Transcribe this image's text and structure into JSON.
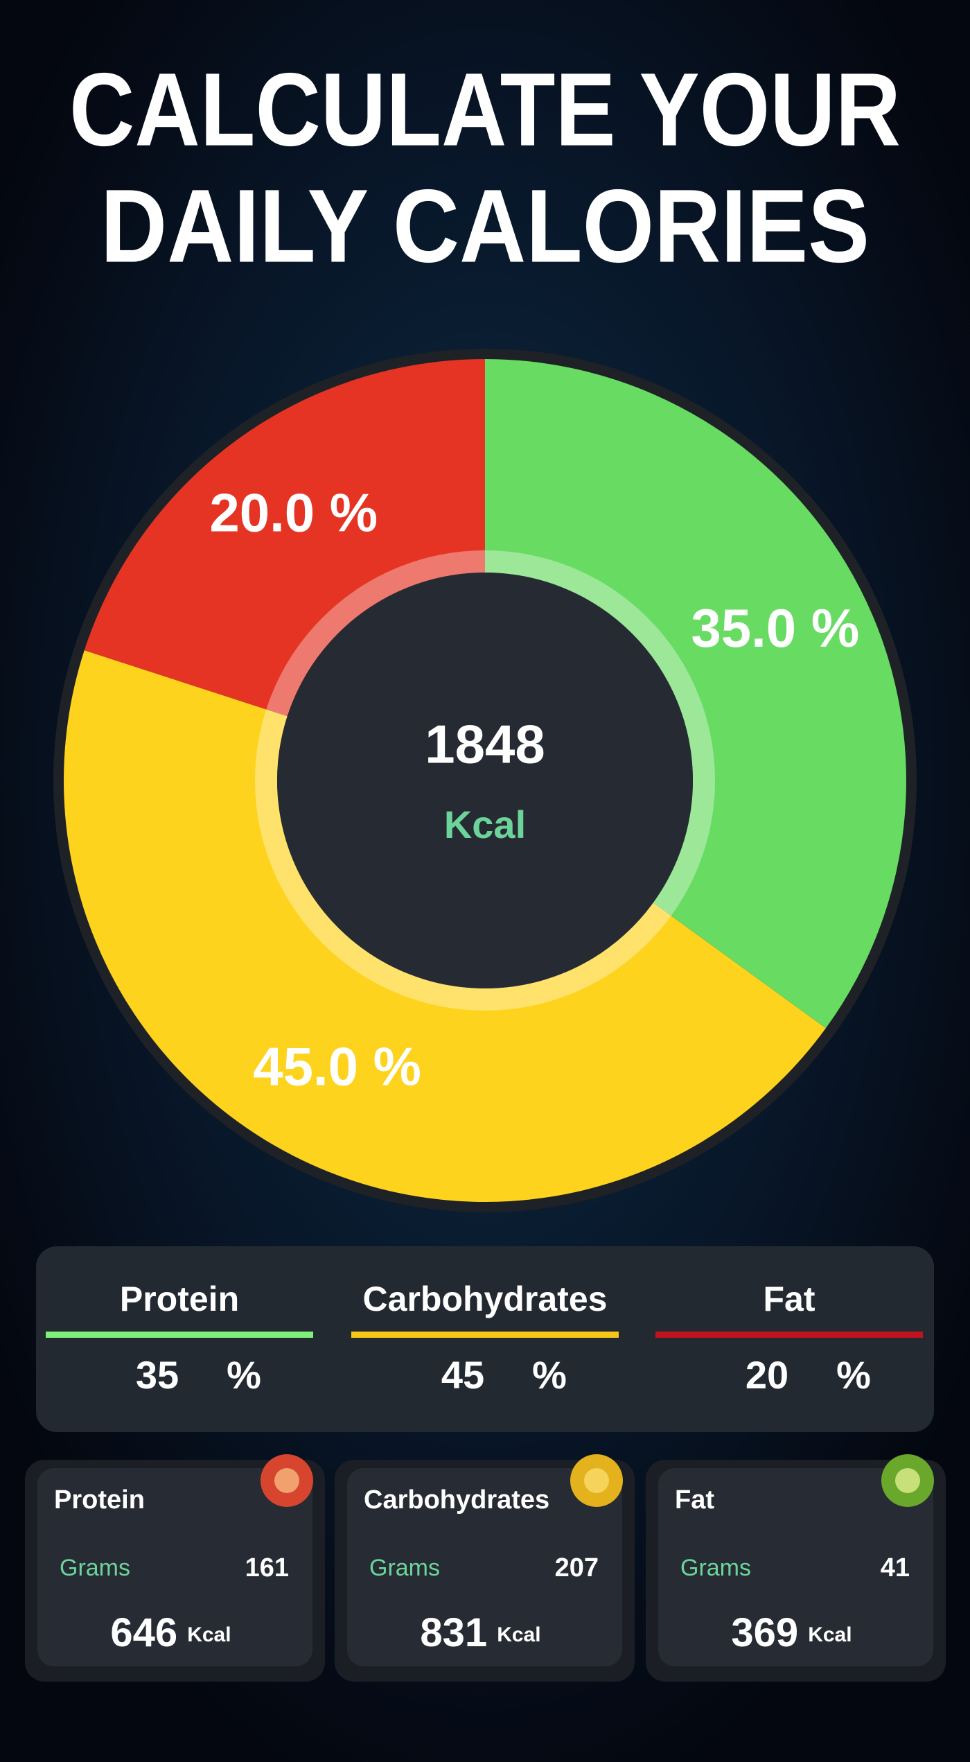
{
  "header": {
    "title_lines": [
      "CALCULATE YOUR",
      "DAILY CALORIES"
    ]
  },
  "chart_data": {
    "type": "donut",
    "categories": [
      "Protein",
      "Carbohydrates",
      "Fat"
    ],
    "values": [
      35,
      45,
      20
    ],
    "value_labels": [
      "35.0 %",
      "45.0 %",
      "20.0 %"
    ],
    "colors": [
      "#67db62",
      "#fdd31d",
      "#e53423"
    ],
    "center_value": 1848,
    "center_unit": "Kcal"
  },
  "summary": {
    "unit": "%",
    "line_colors": [
      "#7ef07a",
      "#f5c518",
      "#c1121f"
    ]
  },
  "cards": [
    {
      "title": "Protein",
      "grams_label": "Grams",
      "grams": 161,
      "kcal": 646,
      "kcal_unit": "Kcal"
    },
    {
      "title": "Carbohydrates",
      "grams_label": "Grams",
      "grams": 207,
      "kcal": 831,
      "kcal_unit": "Kcal"
    },
    {
      "title": "Fat",
      "grams_label": "Grams",
      "grams": 41,
      "kcal": 369,
      "kcal_unit": "Kcal"
    }
  ]
}
